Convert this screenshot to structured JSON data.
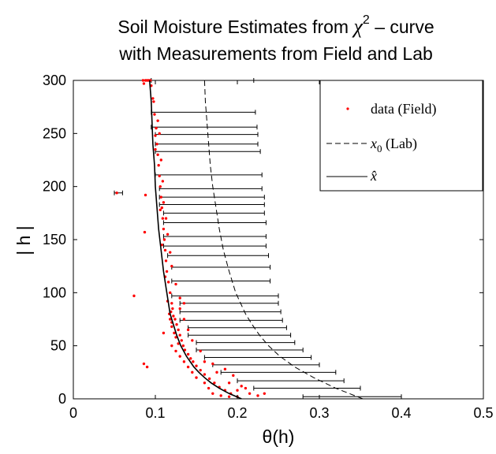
{
  "chart_data": {
    "type": "scatter",
    "title_line1_a": "Soil Moisture Estimates from ",
    "title_chi": "χ",
    "title_sup": "2",
    "title_line1_b": " – curve",
    "title_line2": "with Measurements from Field and Lab",
    "xlabel": "θ(h)",
    "ylabel": "| h |",
    "xlim": [
      0,
      0.5
    ],
    "ylim": [
      0,
      300
    ],
    "xticks": [
      "0",
      "0.1",
      "0.2",
      "0.3",
      "0.4",
      "0.5"
    ],
    "yticks": [
      "0",
      "50",
      "100",
      "150",
      "200",
      "250",
      "300"
    ],
    "legend_position": "top-right",
    "grid": false,
    "legend": [
      {
        "key": "field",
        "label": "data (Field)",
        "style": "red-dots"
      },
      {
        "key": "lab",
        "label_var": "x",
        "label_sub": "0",
        "label_rest": " (Lab)",
        "style": "dashed"
      },
      {
        "key": "estimate",
        "label_var": "x̂",
        "style": "solid"
      }
    ],
    "colors": {
      "field": "#ff0000",
      "line": "#000000"
    },
    "lab_curve": {
      "name": "x0 (Lab)",
      "h": [
        0,
        10,
        20,
        30,
        40,
        50,
        60,
        70,
        80,
        90,
        100,
        120,
        140,
        160,
        180,
        200,
        220,
        240,
        260,
        280,
        300
      ],
      "theta": [
        0.353,
        0.32,
        0.293,
        0.27,
        0.252,
        0.238,
        0.227,
        0.218,
        0.21,
        0.204,
        0.198,
        0.19,
        0.183,
        0.178,
        0.174,
        0.17,
        0.167,
        0.165,
        0.163,
        0.161,
        0.16
      ]
    },
    "estimate_curve": {
      "name": "x̂",
      "h": [
        0,
        5,
        10,
        15,
        20,
        25,
        30,
        40,
        50,
        60,
        70,
        80,
        90,
        100,
        120,
        140,
        160,
        180,
        200,
        220,
        240,
        260,
        280,
        300
      ],
      "theta": [
        0.205,
        0.19,
        0.178,
        0.168,
        0.16,
        0.153,
        0.147,
        0.138,
        0.131,
        0.126,
        0.122,
        0.118,
        0.116,
        0.114,
        0.11,
        0.107,
        0.104,
        0.102,
        0.1,
        0.099,
        0.097,
        0.096,
        0.095,
        0.093
      ]
    },
    "error_bars": [
      {
        "h": 2,
        "lo": 0.28,
        "hi": 0.4
      },
      {
        "h": 10,
        "lo": 0.22,
        "hi": 0.35
      },
      {
        "h": 17,
        "lo": 0.2,
        "hi": 0.33
      },
      {
        "h": 25,
        "lo": 0.18,
        "hi": 0.32
      },
      {
        "h": 32,
        "lo": 0.17,
        "hi": 0.3
      },
      {
        "h": 39,
        "lo": 0.16,
        "hi": 0.29
      },
      {
        "h": 46,
        "lo": 0.15,
        "hi": 0.28
      },
      {
        "h": 53,
        "lo": 0.15,
        "hi": 0.27
      },
      {
        "h": 60,
        "lo": 0.14,
        "hi": 0.265
      },
      {
        "h": 67,
        "lo": 0.14,
        "hi": 0.26
      },
      {
        "h": 74,
        "lo": 0.13,
        "hi": 0.255
      },
      {
        "h": 82,
        "lo": 0.13,
        "hi": 0.253
      },
      {
        "h": 90,
        "lo": 0.13,
        "hi": 0.25
      },
      {
        "h": 97,
        "lo": 0.12,
        "hi": 0.25
      },
      {
        "h": 111,
        "lo": 0.12,
        "hi": 0.24
      },
      {
        "h": 124,
        "lo": 0.12,
        "hi": 0.24
      },
      {
        "h": 135,
        "lo": 0.115,
        "hi": 0.238
      },
      {
        "h": 144,
        "lo": 0.11,
        "hi": 0.235
      },
      {
        "h": 153,
        "lo": 0.11,
        "hi": 0.235
      },
      {
        "h": 166,
        "lo": 0.11,
        "hi": 0.235
      },
      {
        "h": 175,
        "lo": 0.11,
        "hi": 0.233
      },
      {
        "h": 183,
        "lo": 0.105,
        "hi": 0.233
      },
      {
        "h": 190,
        "lo": 0.105,
        "hi": 0.233
      },
      {
        "h": 198,
        "lo": 0.105,
        "hi": 0.23
      },
      {
        "h": 211,
        "lo": 0.1,
        "hi": 0.23
      },
      {
        "h": 233,
        "lo": 0.1,
        "hi": 0.228
      },
      {
        "h": 240,
        "lo": 0.1,
        "hi": 0.225
      },
      {
        "h": 249,
        "lo": 0.1,
        "hi": 0.225
      },
      {
        "h": 256,
        "lo": 0.095,
        "hi": 0.224
      },
      {
        "h": 270,
        "lo": 0.095,
        "hi": 0.222
      },
      {
        "h": 300,
        "lo": 0.095,
        "hi": 0.22
      },
      {
        "h": 194,
        "lo": 0.05,
        "hi": 0.06
      }
    ],
    "field_points": [
      {
        "theta": 0.09,
        "h": 300
      },
      {
        "theta": 0.085,
        "h": 300
      },
      {
        "theta": 0.092,
        "h": 300
      },
      {
        "theta": 0.088,
        "h": 300
      },
      {
        "theta": 0.094,
        "h": 300
      },
      {
        "theta": 0.086,
        "h": 297
      },
      {
        "theta": 0.095,
        "h": 295
      },
      {
        "theta": 0.098,
        "h": 280
      },
      {
        "theta": 0.099,
        "h": 268
      },
      {
        "theta": 0.101,
        "h": 255
      },
      {
        "theta": 0.1,
        "h": 248
      },
      {
        "theta": 0.102,
        "h": 240
      },
      {
        "theta": 0.103,
        "h": 230
      },
      {
        "theta": 0.104,
        "h": 220
      },
      {
        "theta": 0.105,
        "h": 210
      },
      {
        "theta": 0.106,
        "h": 200
      },
      {
        "theta": 0.107,
        "h": 190
      },
      {
        "theta": 0.108,
        "h": 180
      },
      {
        "theta": 0.109,
        "h": 170
      },
      {
        "theta": 0.11,
        "h": 160
      },
      {
        "theta": 0.111,
        "h": 150
      },
      {
        "theta": 0.112,
        "h": 140
      },
      {
        "theta": 0.113,
        "h": 130
      },
      {
        "theta": 0.114,
        "h": 120
      },
      {
        "theta": 0.116,
        "h": 110
      },
      {
        "theta": 0.118,
        "h": 100
      },
      {
        "theta": 0.12,
        "h": 90
      },
      {
        "theta": 0.121,
        "h": 85
      },
      {
        "theta": 0.119,
        "h": 82
      },
      {
        "theta": 0.122,
        "h": 78
      },
      {
        "theta": 0.124,
        "h": 75
      },
      {
        "theta": 0.126,
        "h": 70
      },
      {
        "theta": 0.128,
        "h": 65
      },
      {
        "theta": 0.13,
        "h": 60
      },
      {
        "theta": 0.132,
        "h": 55
      },
      {
        "theta": 0.134,
        "h": 50
      },
      {
        "theta": 0.136,
        "h": 46
      },
      {
        "theta": 0.14,
        "h": 42
      },
      {
        "theta": 0.143,
        "h": 38
      },
      {
        "theta": 0.146,
        "h": 35
      },
      {
        "theta": 0.15,
        "h": 31
      },
      {
        "theta": 0.155,
        "h": 27
      },
      {
        "theta": 0.16,
        "h": 23
      },
      {
        "theta": 0.166,
        "h": 19
      },
      {
        "theta": 0.172,
        "h": 15
      },
      {
        "theta": 0.178,
        "h": 11
      },
      {
        "theta": 0.185,
        "h": 8
      },
      {
        "theta": 0.192,
        "h": 5
      },
      {
        "theta": 0.2,
        "h": 2
      },
      {
        "theta": 0.21,
        "h": 10
      },
      {
        "theta": 0.215,
        "h": 5
      },
      {
        "theta": 0.225,
        "h": 3
      },
      {
        "theta": 0.233,
        "h": 5
      },
      {
        "theta": 0.19,
        "h": 15
      },
      {
        "theta": 0.175,
        "h": 25
      },
      {
        "theta": 0.16,
        "h": 35
      },
      {
        "theta": 0.155,
        "h": 45
      },
      {
        "theta": 0.145,
        "h": 55
      },
      {
        "theta": 0.14,
        "h": 65
      },
      {
        "theta": 0.135,
        "h": 75
      },
      {
        "theta": 0.13,
        "h": 85
      },
      {
        "theta": 0.13,
        "h": 95
      },
      {
        "theta": 0.125,
        "h": 108
      },
      {
        "theta": 0.12,
        "h": 125
      },
      {
        "theta": 0.118,
        "h": 138
      },
      {
        "theta": 0.115,
        "h": 155
      },
      {
        "theta": 0.113,
        "h": 170
      },
      {
        "theta": 0.11,
        "h": 185
      },
      {
        "theta": 0.109,
        "h": 205
      },
      {
        "theta": 0.107,
        "h": 225
      },
      {
        "theta": 0.105,
        "h": 250
      },
      {
        "theta": 0.103,
        "h": 262
      },
      {
        "theta": 0.117,
        "h": 80
      },
      {
        "theta": 0.118,
        "h": 75
      },
      {
        "theta": 0.12,
        "h": 72
      },
      {
        "theta": 0.12,
        "h": 68
      },
      {
        "theta": 0.123,
        "h": 62
      },
      {
        "theta": 0.125,
        "h": 58
      },
      {
        "theta": 0.128,
        "h": 52
      },
      {
        "theta": 0.12,
        "h": 50
      },
      {
        "theta": 0.125,
        "h": 45
      },
      {
        "theta": 0.13,
        "h": 40
      },
      {
        "theta": 0.135,
        "h": 35
      },
      {
        "theta": 0.14,
        "h": 30
      },
      {
        "theta": 0.145,
        "h": 25
      },
      {
        "theta": 0.15,
        "h": 20
      },
      {
        "theta": 0.16,
        "h": 15
      },
      {
        "theta": 0.165,
        "h": 10
      },
      {
        "theta": 0.17,
        "h": 5
      },
      {
        "theta": 0.18,
        "h": 3
      },
      {
        "theta": 0.19,
        "h": 2
      },
      {
        "theta": 0.2,
        "h": 8
      },
      {
        "theta": 0.205,
        "h": 12
      },
      {
        "theta": 0.195,
        "h": 22
      },
      {
        "theta": 0.185,
        "h": 28
      },
      {
        "theta": 0.17,
        "h": 33
      },
      {
        "theta": 0.11,
        "h": 62
      },
      {
        "theta": 0.115,
        "h": 92
      },
      {
        "theta": 0.112,
        "h": 115
      },
      {
        "theta": 0.108,
        "h": 145
      },
      {
        "theta": 0.106,
        "h": 178
      },
      {
        "theta": 0.1,
        "h": 235
      },
      {
        "theta": 0.097,
        "h": 283
      },
      {
        "theta": 0.074,
        "h": 97
      },
      {
        "theta": 0.087,
        "h": 157
      },
      {
        "theta": 0.088,
        "h": 192
      },
      {
        "theta": 0.086,
        "h": 33
      },
      {
        "theta": 0.09,
        "h": 30
      },
      {
        "theta": 0.053,
        "h": 194
      },
      {
        "theta": 0.135,
        "h": 90
      }
    ]
  }
}
